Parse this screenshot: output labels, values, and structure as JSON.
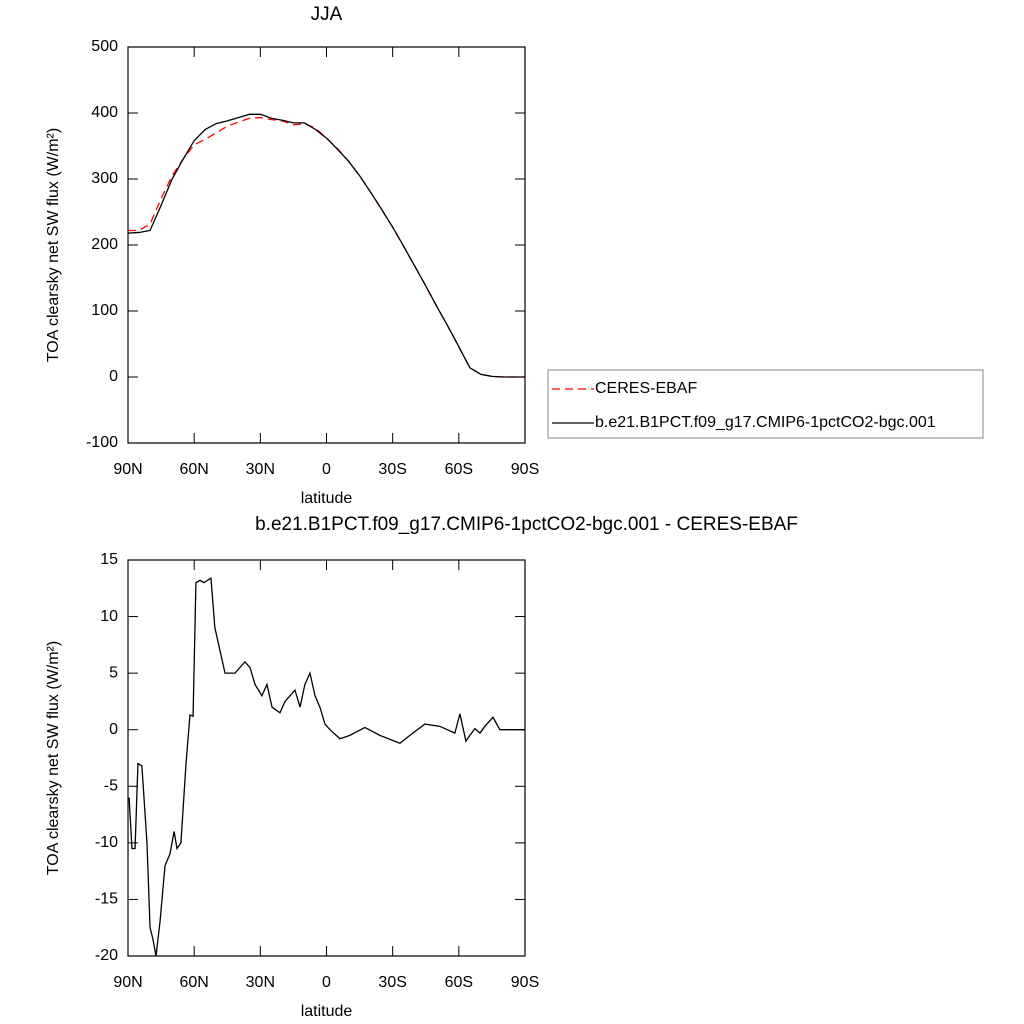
{
  "chart_data": [
    {
      "type": "line",
      "title": "JJA",
      "xlabel": "latitude",
      "ylabel": "TOA clearsky net SW flux (W/m²)",
      "x": [
        90,
        85,
        80,
        75,
        70,
        65,
        60,
        55,
        50,
        45,
        40,
        35,
        30,
        25,
        20,
        15,
        10,
        5,
        0,
        -5,
        -10,
        -15,
        -20,
        -25,
        -30,
        -35,
        -40,
        -45,
        -50,
        -55,
        -60,
        -65,
        -70,
        -75,
        -80,
        -85,
        -90
      ],
      "series": [
        {
          "name": "CERES-EBAF",
          "color": "#ff0000",
          "linestyle": "dashed",
          "values": [
            222,
            222,
            232,
            270,
            305,
            330,
            352,
            360,
            370,
            380,
            386,
            392,
            393,
            390,
            388,
            382,
            384,
            377,
            362,
            346,
            327,
            305,
            280,
            254,
            227,
            198,
            168,
            138,
            107,
            77,
            46,
            14,
            4,
            1,
            0,
            0,
            0
          ]
        },
        {
          "name": "b.e21.B1PCT.f09_g17.CMIP6-1pctCO2-bgc.001",
          "color": "#000000",
          "linestyle": "solid",
          "values": [
            218,
            219,
            222,
            260,
            300,
            330,
            358,
            375,
            384,
            388,
            393,
            398,
            398,
            392,
            389,
            385,
            385,
            375,
            362,
            345,
            327,
            305,
            280,
            254,
            227,
            198,
            168,
            138,
            107,
            77,
            46,
            14,
            4,
            1,
            0,
            0,
            0
          ]
        }
      ],
      "xlim": [
        90,
        -90
      ],
      "xticks": [
        {
          "value": 90,
          "label": "90N"
        },
        {
          "value": 60,
          "label": "60N"
        },
        {
          "value": 30,
          "label": "30N"
        },
        0,
        {
          "value": -30,
          "label": "30S"
        },
        {
          "value": -60,
          "label": "60S"
        },
        {
          "value": -90,
          "label": "90S"
        }
      ],
      "ylim": [
        -100,
        500
      ],
      "yticks": [
        -100,
        0,
        100,
        200,
        300,
        400,
        500
      ],
      "legend": "right"
    },
    {
      "type": "line",
      "title": "b.e21.B1PCT.f09_g17.CMIP6-1pctCO2-bgc.001 - CERES-EBAF",
      "xlabel": "latitude",
      "ylabel": "TOA clearsky net SW flux (W/m²)",
      "x": [
        89.5,
        88.2,
        86.8,
        85.5,
        83.7,
        81.4,
        80,
        78.7,
        77.3,
        75.5,
        73.2,
        71,
        69.1,
        67.8,
        66,
        63.7,
        61.9,
        60.5,
        59.2,
        57.4,
        55.5,
        52.4,
        50.6,
        48.3,
        46,
        43.8,
        41.5,
        37,
        34.7,
        32.4,
        29.3,
        27,
        24.7,
        21.1,
        18.8,
        14.3,
        12,
        9.8,
        7.5,
        5.2,
        3,
        0.7,
        -1.6,
        -6.1,
        -10.6,
        -17.4,
        -24.2,
        -33.3,
        -37.8,
        -44.6,
        -51.4,
        -58.2,
        -60.5,
        -63.2,
        -65,
        -67.3,
        -69.6,
        -71.8,
        -75.5,
        -78.6,
        -90
      ],
      "values": [
        -6,
        -10.5,
        -10.5,
        -3,
        -3.2,
        -10,
        -17.5,
        -18.5,
        -20,
        -17,
        -12,
        -11,
        -9,
        -10.5,
        -10,
        -3,
        1.3,
        1.2,
        13,
        13.2,
        13,
        13.4,
        9,
        7,
        5,
        5,
        5,
        6,
        5.5,
        4,
        3,
        4,
        2,
        1.5,
        2.5,
        3.5,
        2,
        4,
        5,
        3,
        2,
        0.5,
        0,
        -0.8,
        -0.5,
        0.2,
        -0.5,
        -1.2,
        -0.5,
        0.5,
        0.3,
        -0.3,
        1.4,
        -1,
        -0.5,
        0.1,
        -0.3,
        0.3,
        1.1,
        0,
        0
      ],
      "color": "#000000",
      "xlim": [
        90,
        -90
      ],
      "xticks": [
        {
          "value": 90,
          "label": "90N"
        },
        {
          "value": 60,
          "label": "60N"
        },
        {
          "value": 30,
          "label": "30N"
        },
        0,
        {
          "value": -30,
          "label": "30S"
        },
        {
          "value": -60,
          "label": "60S"
        },
        {
          "value": -90,
          "label": "90S"
        }
      ],
      "ylim": [
        -20,
        15
      ],
      "yticks": [
        -20,
        -15,
        -10,
        -5,
        0,
        5,
        10,
        15
      ]
    }
  ]
}
